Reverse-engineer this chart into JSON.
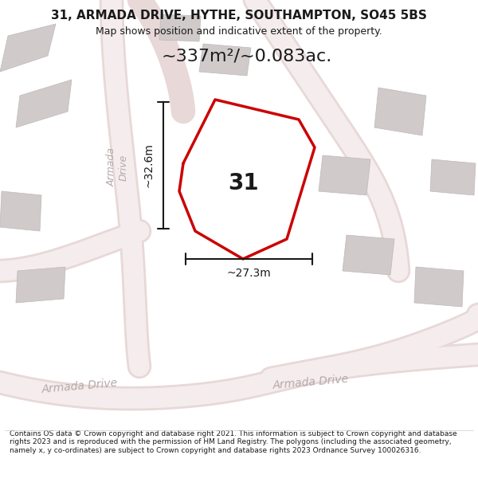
{
  "title_line1": "31, ARMADA DRIVE, HYTHE, SOUTHAMPTON, SO45 5BS",
  "title_line2": "Map shows position and indicative extent of the property.",
  "area_text": "~337m²/~0.083ac.",
  "label_31": "31",
  "dim_height": "~32.6m",
  "dim_width": "~27.3m",
  "footer": "Contains OS data © Crown copyright and database right 2021. This information is subject to Crown copyright and database rights 2023 and is reproduced with the permission of HM Land Registry. The polygons (including the associated geometry, namely x, y co-ordinates) are subject to Crown copyright and database rights 2023 Ordnance Survey 100026316.",
  "bg_color": "#f5f0f0",
  "map_bg": "#f5f0f0",
  "road_color": "#f4c5c5",
  "building_color": "#d9d9d9",
  "property_outline_color": "#cc0000",
  "dim_line_color": "#1a1a1a",
  "road_label_color": "#b0a0a0",
  "street_label_color": "#aaaaaa",
  "property_fill": "#ffffff",
  "property_fill_alpha": 0.0
}
